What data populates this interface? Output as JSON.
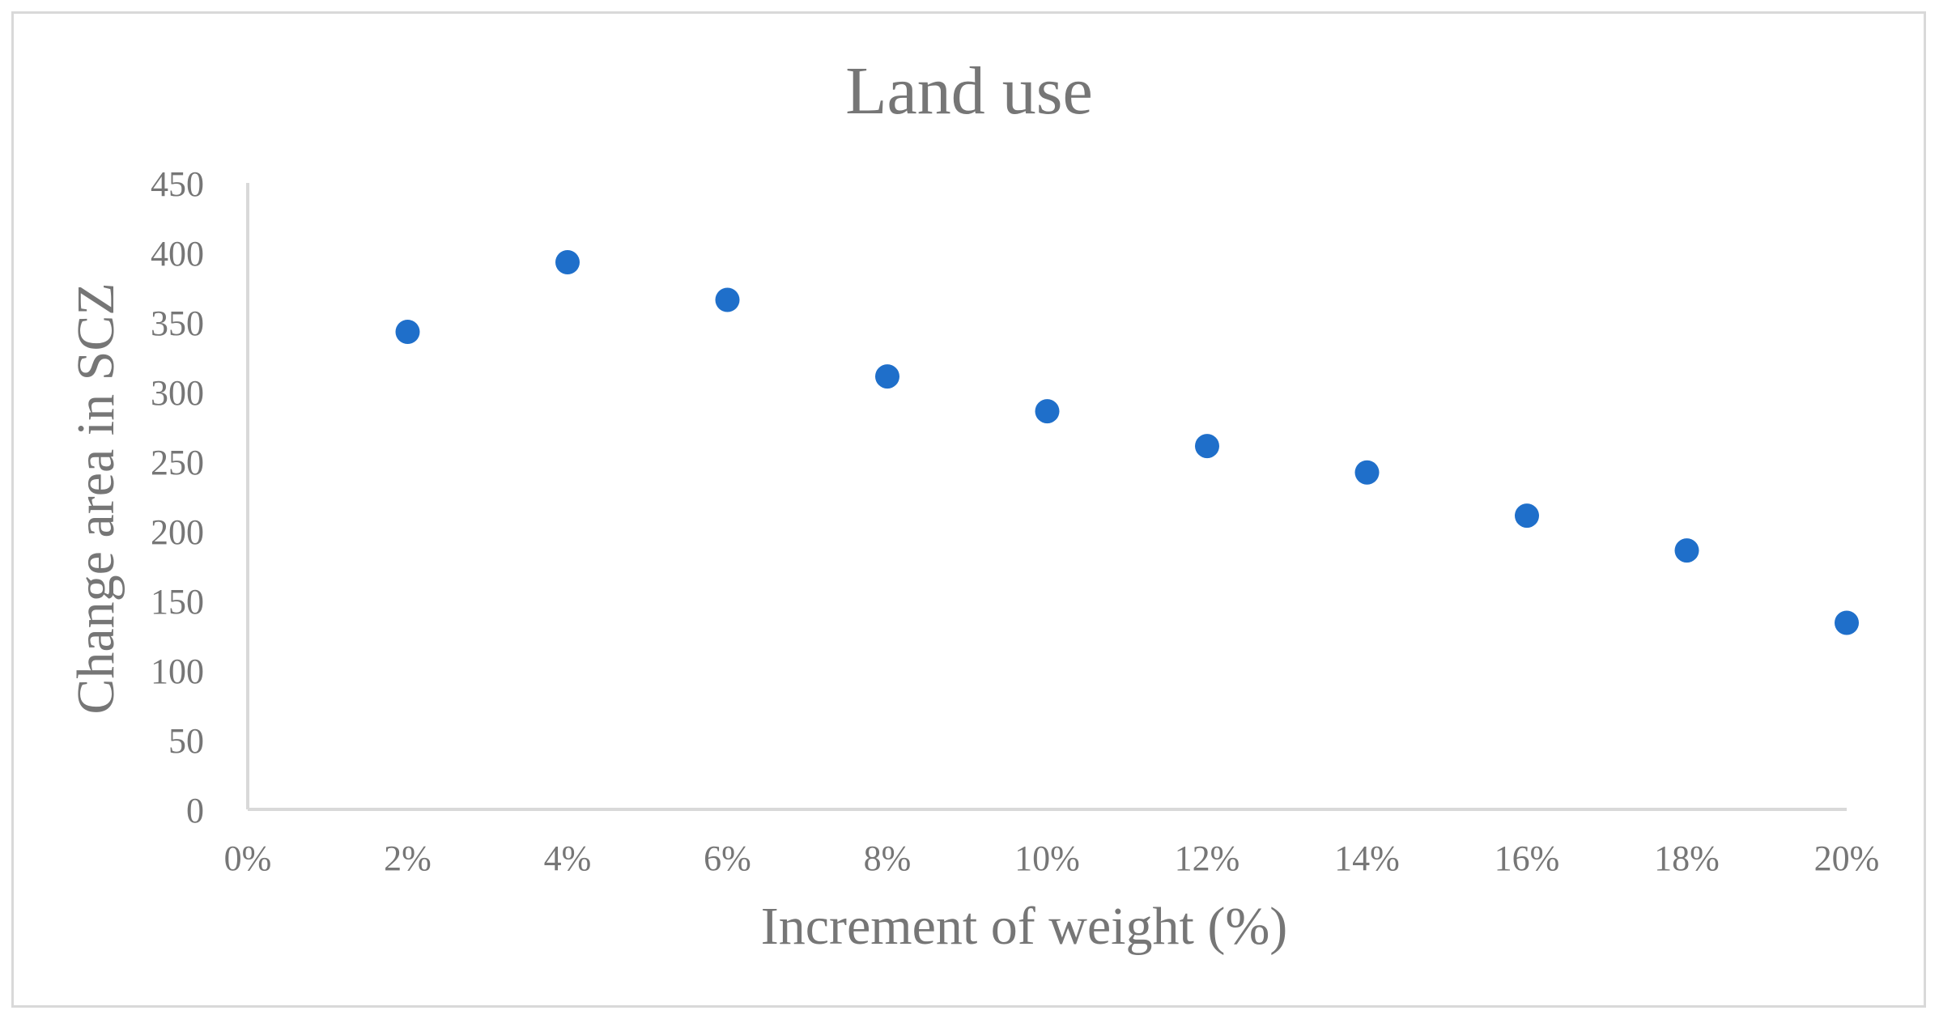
{
  "chart_data": {
    "type": "scatter",
    "title": "Land use",
    "xlabel": "Increment of weight (%)",
    "ylabel": "Change area in SCZ",
    "x_tick_labels": [
      "0%",
      "2%",
      "4%",
      "6%",
      "8%",
      "10%",
      "12%",
      "14%",
      "16%",
      "18%",
      "20%"
    ],
    "y_tick_labels": [
      "0",
      "50",
      "100",
      "150",
      "200",
      "250",
      "300",
      "350",
      "400",
      "450"
    ],
    "xlim": [
      0,
      20
    ],
    "ylim": [
      0,
      450
    ],
    "x_unit": "%",
    "grid": false,
    "marker_color": "#1f6fca",
    "axis_color": "#d9d9d9",
    "text_color": "#767676",
    "points": [
      {
        "x": 2,
        "y": 343
      },
      {
        "x": 4,
        "y": 393
      },
      {
        "x": 6,
        "y": 366
      },
      {
        "x": 8,
        "y": 311
      },
      {
        "x": 10,
        "y": 286
      },
      {
        "x": 12,
        "y": 261
      },
      {
        "x": 14,
        "y": 242
      },
      {
        "x": 16,
        "y": 211
      },
      {
        "x": 18,
        "y": 186
      },
      {
        "x": 20,
        "y": 134
      }
    ]
  }
}
